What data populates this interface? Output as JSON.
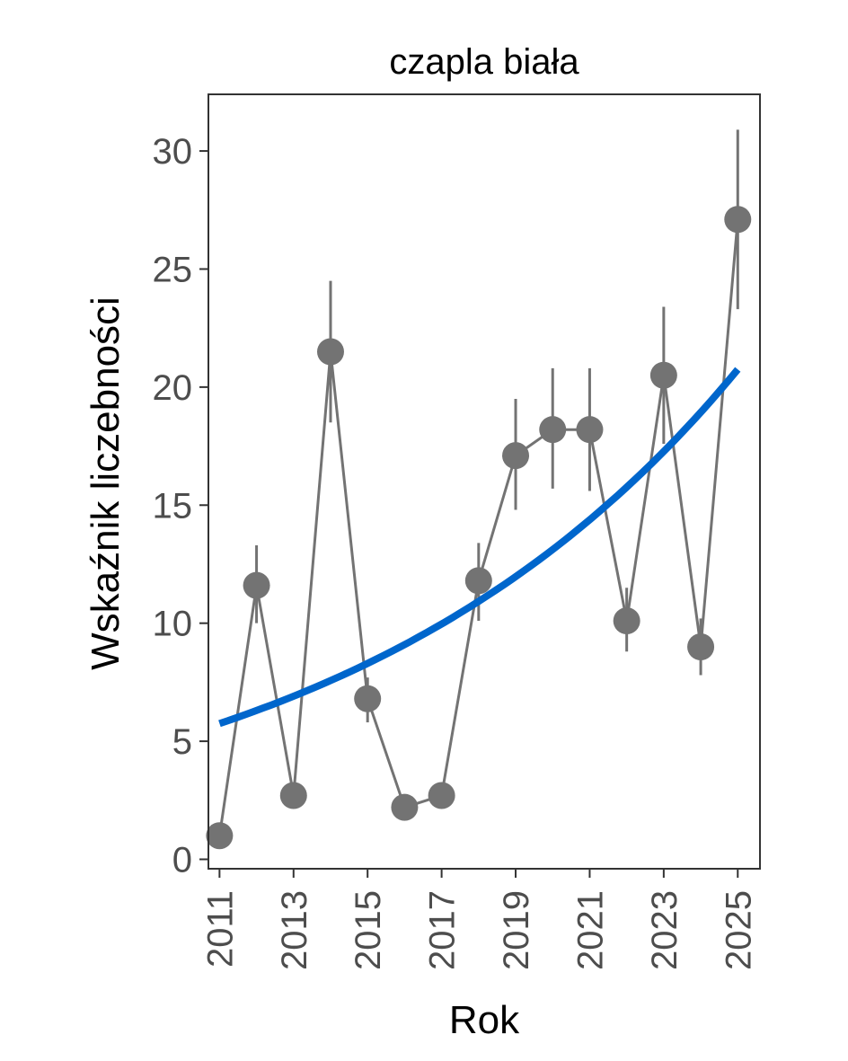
{
  "chart_data": {
    "type": "line",
    "title": "czapla biała",
    "xlabel": "Rok",
    "ylabel": "Wskaźnik liczebności",
    "x_ticks": [
      "2011",
      "2013",
      "2015",
      "2017",
      "2019",
      "2021",
      "2023",
      "2025"
    ],
    "y_ticks": [
      "0",
      "5",
      "10",
      "15",
      "20",
      "25",
      "30"
    ],
    "xlim": [
      2010.7,
      2025.6
    ],
    "ylim": [
      -0.4,
      32.4
    ],
    "grid": false,
    "legend": "none",
    "series": [
      {
        "type": "points-with-error-bars",
        "color": "#737373",
        "x": [
          2011,
          2012,
          2013,
          2014,
          2015,
          2016,
          2017,
          2018,
          2019,
          2020,
          2021,
          2022,
          2023,
          2024,
          2025
        ],
        "y": [
          1.0,
          11.6,
          2.7,
          21.5,
          6.8,
          2.2,
          2.7,
          11.8,
          17.1,
          18.2,
          18.2,
          10.1,
          20.5,
          9.0,
          27.1
        ],
        "lower": [
          null,
          10.0,
          null,
          18.5,
          5.8,
          null,
          null,
          10.1,
          14.8,
          15.7,
          15.6,
          8.8,
          17.6,
          7.8,
          23.3
        ],
        "upper": [
          null,
          13.3,
          null,
          24.5,
          7.7,
          null,
          null,
          13.4,
          19.5,
          20.8,
          20.8,
          11.5,
          23.4,
          10.2,
          30.9
        ]
      },
      {
        "type": "trend",
        "color": "#0066cc",
        "model": "exponential",
        "start": [
          2011,
          5.75
        ],
        "end": [
          2025,
          20.75
        ]
      }
    ]
  }
}
